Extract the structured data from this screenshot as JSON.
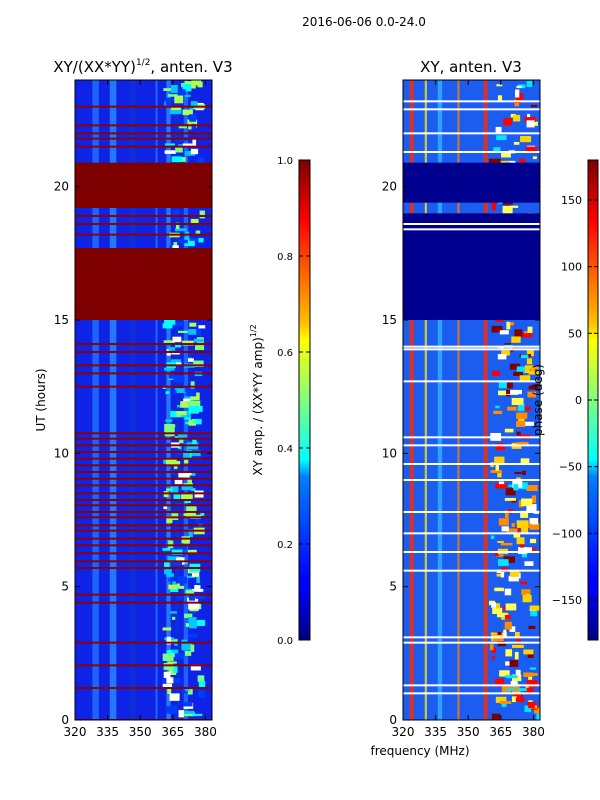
{
  "figure": {
    "suptitle": "2016-06-06 0.0-24.0",
    "xlabel": "frequency (MHz)"
  },
  "chart_data": [
    {
      "type": "heatmap",
      "title_main": "XY/(XX*YY)",
      "title_sup": "1/2",
      "title_rest": ", anten. V3",
      "ylabel": "UT (hours)",
      "xlim": [
        320,
        383
      ],
      "ylim": [
        0,
        24
      ],
      "xticks": [
        320,
        335,
        350,
        365,
        380
      ],
      "yticks": [
        0,
        5,
        10,
        15,
        20
      ],
      "bands_mhz": [
        [
          328,
          331
        ],
        [
          336,
          339
        ],
        [
          345,
          348
        ],
        [
          357,
          358
        ],
        [
          362,
          364
        ],
        [
          366,
          368
        ],
        [
          370,
          372
        ]
      ],
      "active_band_mhz": [
        360,
        380
      ],
      "saturated_hours": [
        [
          15.0,
          17.7
        ],
        [
          19.2,
          20.9
        ]
      ],
      "flagged_hours": [
        0.0,
        1.2,
        2.05,
        2.9,
        4.4,
        4.7,
        5.7,
        5.95,
        6.25,
        6.55,
        6.8,
        7.1,
        7.3,
        7.6,
        7.8,
        8.05,
        8.25,
        8.5,
        8.8,
        9.05,
        9.3,
        9.55,
        9.8,
        10.05,
        10.3,
        10.55,
        10.75,
        12.5,
        13.0,
        13.3,
        13.8,
        14.1,
        18.2,
        18.6,
        18.9,
        21.5,
        21.8,
        22.0,
        22.3,
        23.0
      ],
      "colorbar": {
        "label_main": "XY amp. / (XX*YY amp)",
        "label_sup": "1/2",
        "min": 0.0,
        "max": 1.0,
        "ticks": [
          "0.0",
          "0.2",
          "0.4",
          "0.6",
          "0.8",
          "1.0"
        ]
      }
    },
    {
      "type": "heatmap",
      "title": "XY, anten. V3",
      "xlim": [
        320,
        383
      ],
      "ylim": [
        0,
        24
      ],
      "xticks": [
        320,
        335,
        350,
        365,
        380
      ],
      "yticks": [
        0,
        5,
        10,
        15,
        20
      ],
      "bands_mhz": [
        [
          323,
          325
        ],
        [
          330,
          331
        ],
        [
          336,
          338
        ],
        [
          345,
          346
        ],
        [
          357,
          359
        ]
      ],
      "active_band_mhz": [
        359,
        383
      ],
      "low_value_hours": [
        [
          15.0,
          19.0
        ],
        [
          19.4,
          20.9
        ]
      ],
      "flagged_hours": [
        1.0,
        1.3,
        2.9,
        3.1,
        5.6,
        6.3,
        7.0,
        7.8,
        9.0,
        9.6,
        10.3,
        10.6,
        12.7,
        13.9,
        14.0,
        18.4,
        18.6,
        21.3,
        22.0,
        22.9,
        23.2
      ],
      "colorbar": {
        "label": "phase (deg)",
        "min": -180,
        "max": 180,
        "ticks": [
          "−150",
          "−100",
          "−50",
          "0",
          "50",
          "100",
          "150"
        ]
      }
    }
  ]
}
